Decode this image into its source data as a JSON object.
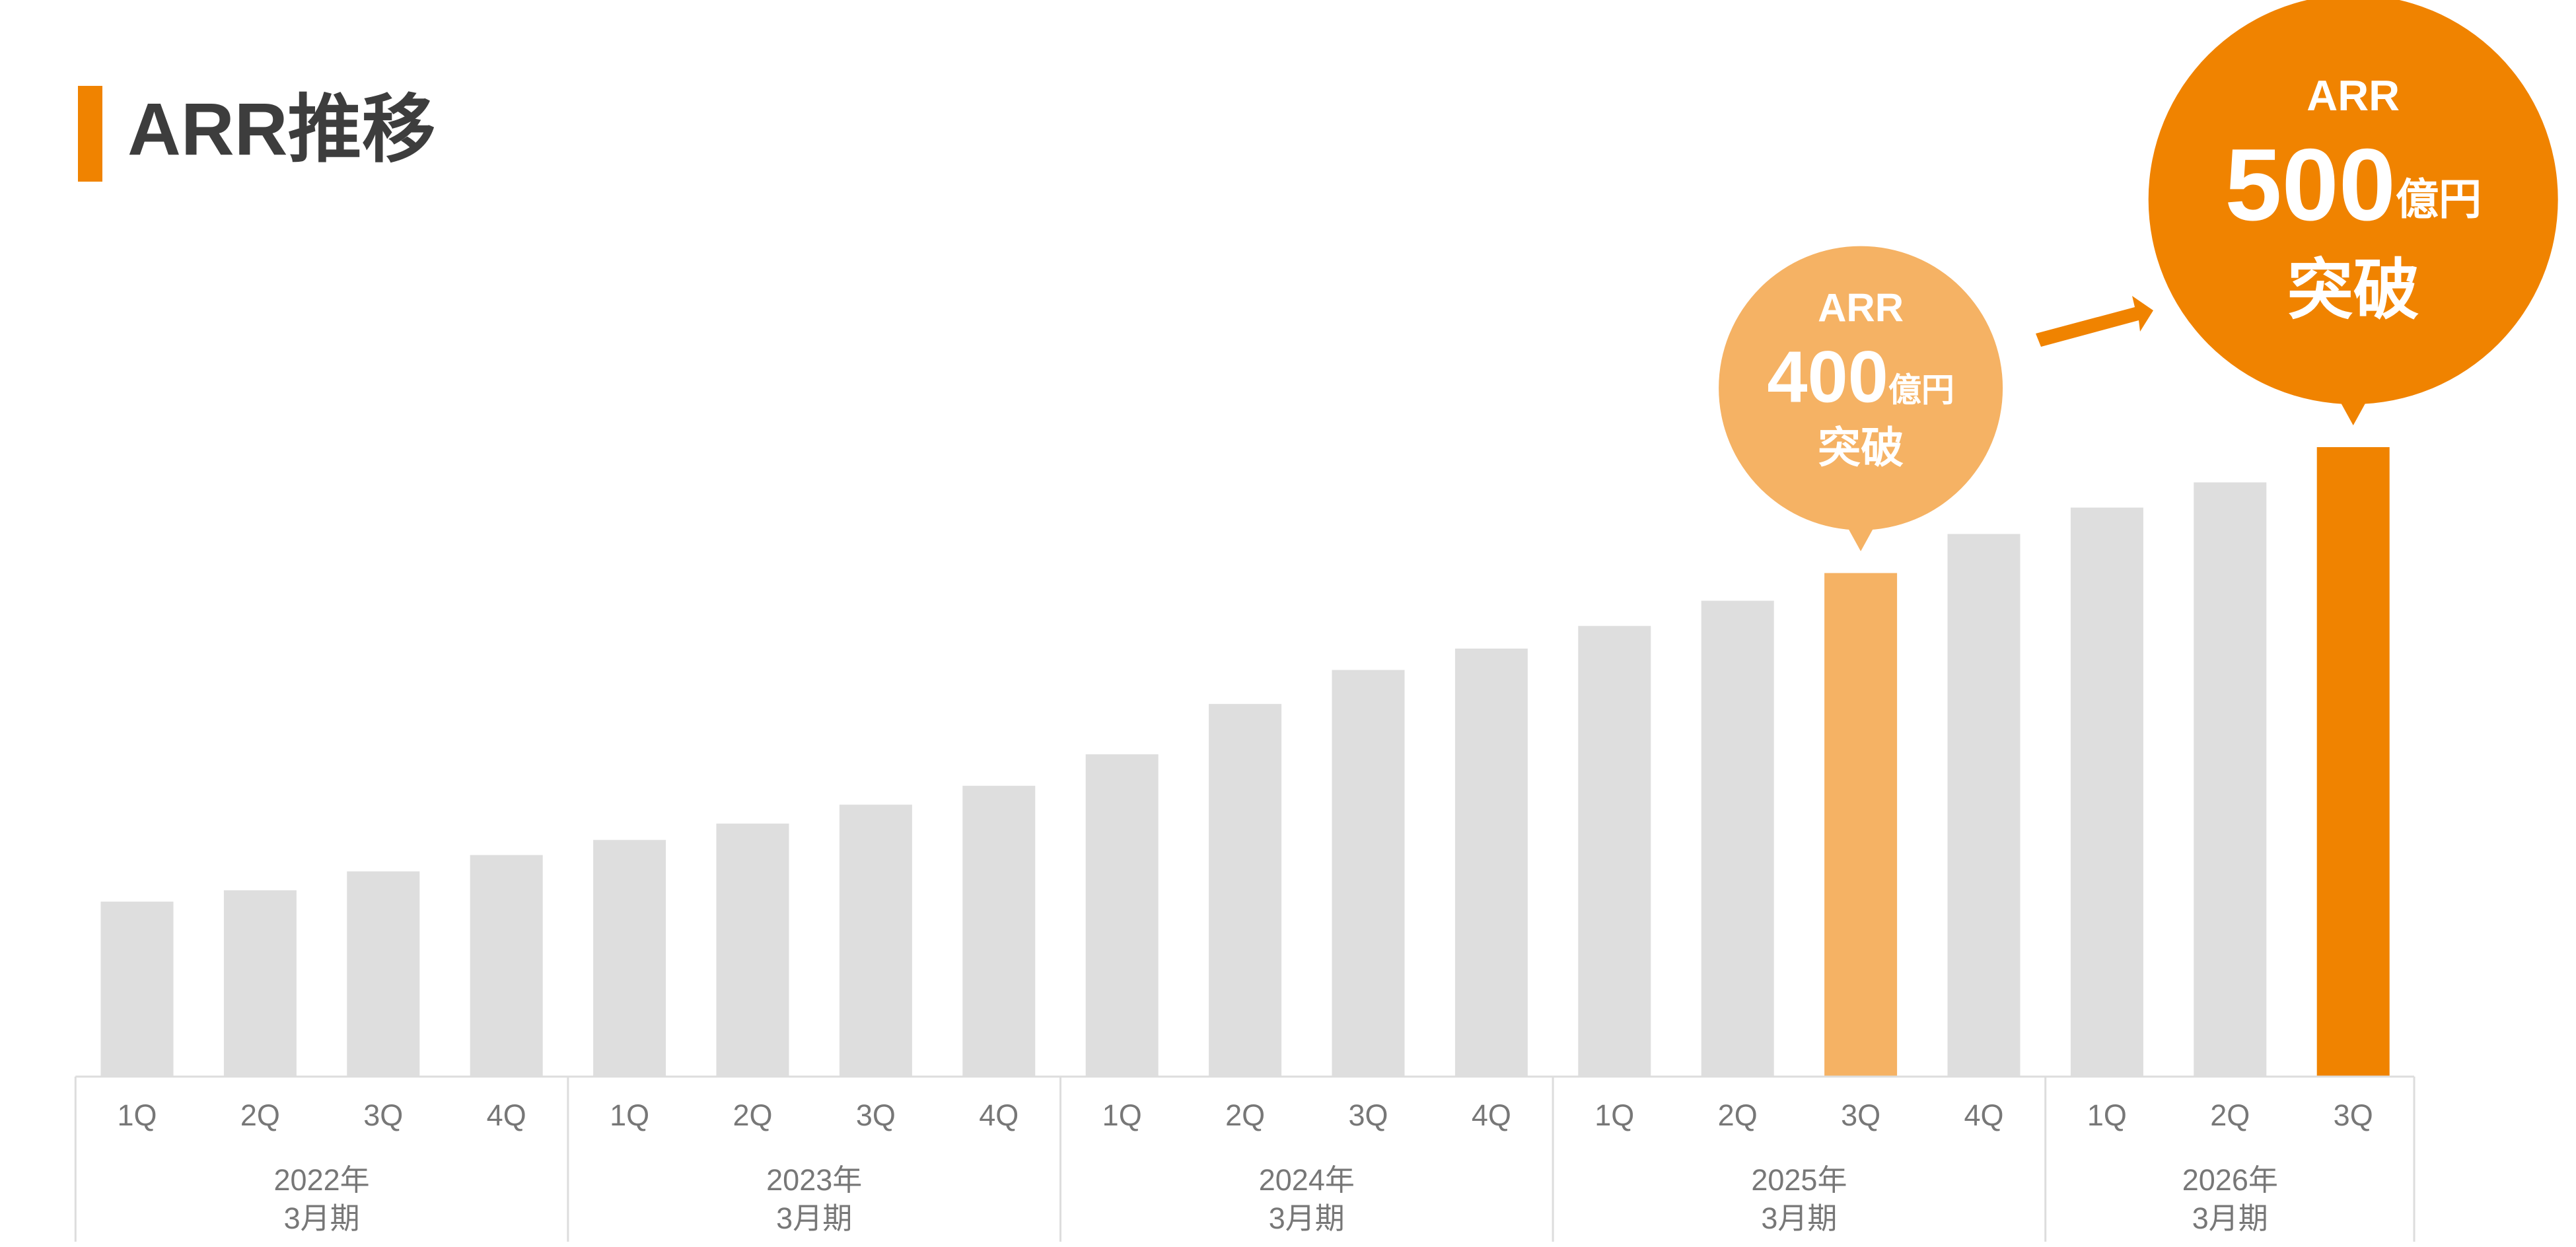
{
  "chart_data": {
    "type": "bar",
    "title": "ARR推移",
    "color": "#dedede",
    "groups": [
      {
        "name": "2022年",
        "sub": "3月期",
        "categories": [
          "1Q",
          "2Q",
          "3Q",
          "4Q"
        ],
        "values": [
          139,
          148,
          163,
          176
        ],
        "colors": [
          "#dedede",
          "#dedede",
          "#dedede",
          "#dedede"
        ]
      },
      {
        "name": "2023年",
        "sub": "3月期",
        "categories": [
          "1Q",
          "2Q",
          "3Q",
          "4Q"
        ],
        "values": [
          188,
          201,
          216,
          231
        ],
        "colors": [
          "#dedede",
          "#dedede",
          "#dedede",
          "#dedede"
        ]
      },
      {
        "name": "2024年",
        "sub": "3月期",
        "categories": [
          "1Q",
          "2Q",
          "3Q",
          "4Q"
        ],
        "values": [
          256,
          296,
          323,
          340
        ],
        "colors": [
          "#dedede",
          "#dedede",
          "#dedede",
          "#dedede"
        ]
      },
      {
        "name": "2025年",
        "sub": "3月期",
        "categories": [
          "1Q",
          "2Q",
          "3Q",
          "4Q"
        ],
        "values": [
          358,
          378,
          400,
          431
        ],
        "colors": [
          "#dedede",
          "#dedede",
          "#f5b264",
          "#dedede"
        ]
      },
      {
        "name": "2026年",
        "sub": "3月期",
        "categories": [
          "1Q",
          "2Q",
          "3Q"
        ],
        "values": [
          452,
          472,
          500
        ],
        "colors": [
          "#dedede",
          "#dedede",
          "#f08300"
        ]
      }
    ],
    "callouts": [
      {
        "label": "ARR",
        "amount": 400,
        "unit": "億円",
        "suffix": "突破",
        "color": "#f5b264"
      },
      {
        "label": "ARR",
        "amount": 500,
        "unit": "億円",
        "suffix": "突破",
        "color": "#f08300"
      }
    ]
  }
}
